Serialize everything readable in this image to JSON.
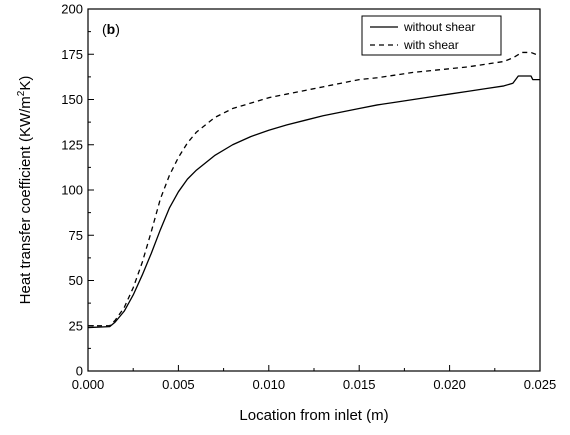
{
  "chart_data": {
    "type": "line",
    "panel_label": "(b)",
    "panel_label_parts": {
      "open": "(",
      "letter": "b",
      "close": ")"
    },
    "title": "",
    "xlabel": "Location from inlet (m)",
    "ylabel_parts": {
      "pre": "Heat transfer coefficient (KW/m",
      "sup": "2",
      "post": "K)"
    },
    "xlim": [
      0.0,
      0.025
    ],
    "ylim": [
      0,
      200
    ],
    "x_ticks": [
      0.0,
      0.005,
      0.01,
      0.015,
      0.02,
      0.025
    ],
    "x_tick_labels": [
      "0.000",
      "0.005",
      "0.010",
      "0.015",
      "0.020",
      "0.025"
    ],
    "y_ticks": [
      0,
      25,
      50,
      75,
      100,
      125,
      150,
      175,
      200
    ],
    "y_tick_labels": [
      "0",
      "25",
      "50",
      "75",
      "100",
      "125",
      "150",
      "175",
      "200"
    ],
    "grid": false,
    "legend_position": "top-right",
    "series": [
      {
        "name": "without shear",
        "style": "solid",
        "x": [
          0.0,
          0.0012,
          0.0015,
          0.002,
          0.0025,
          0.003,
          0.0035,
          0.004,
          0.0045,
          0.005,
          0.0055,
          0.006,
          0.007,
          0.008,
          0.009,
          0.01,
          0.011,
          0.012,
          0.013,
          0.014,
          0.015,
          0.016,
          0.017,
          0.018,
          0.019,
          0.02,
          0.021,
          0.022,
          0.023,
          0.0235,
          0.0238,
          0.0245,
          0.0246,
          0.025
        ],
        "y": [
          24,
          24.5,
          27,
          33,
          42,
          53,
          65,
          78,
          90,
          99,
          106,
          111,
          119,
          125,
          129.5,
          133,
          136,
          138.5,
          141,
          143,
          145,
          147,
          148.5,
          150,
          151.5,
          153,
          154.5,
          156,
          157.5,
          159,
          163,
          163,
          161,
          161
        ]
      },
      {
        "name": "with shear",
        "style": "dashed",
        "x": [
          0.0,
          0.0012,
          0.0015,
          0.002,
          0.0025,
          0.003,
          0.0035,
          0.004,
          0.0045,
          0.005,
          0.0055,
          0.006,
          0.007,
          0.008,
          0.009,
          0.01,
          0.011,
          0.012,
          0.013,
          0.014,
          0.015,
          0.016,
          0.017,
          0.018,
          0.019,
          0.02,
          0.021,
          0.022,
          0.023,
          0.0235,
          0.024,
          0.0245,
          0.025
        ],
        "y": [
          25,
          25,
          28,
          35,
          46,
          60,
          77,
          95,
          108,
          118,
          126,
          132,
          140,
          145,
          148,
          151,
          153,
          155,
          157,
          159,
          161,
          162,
          163.5,
          165,
          166,
          167,
          168,
          169.5,
          171,
          173,
          176,
          176,
          174
        ]
      }
    ]
  }
}
